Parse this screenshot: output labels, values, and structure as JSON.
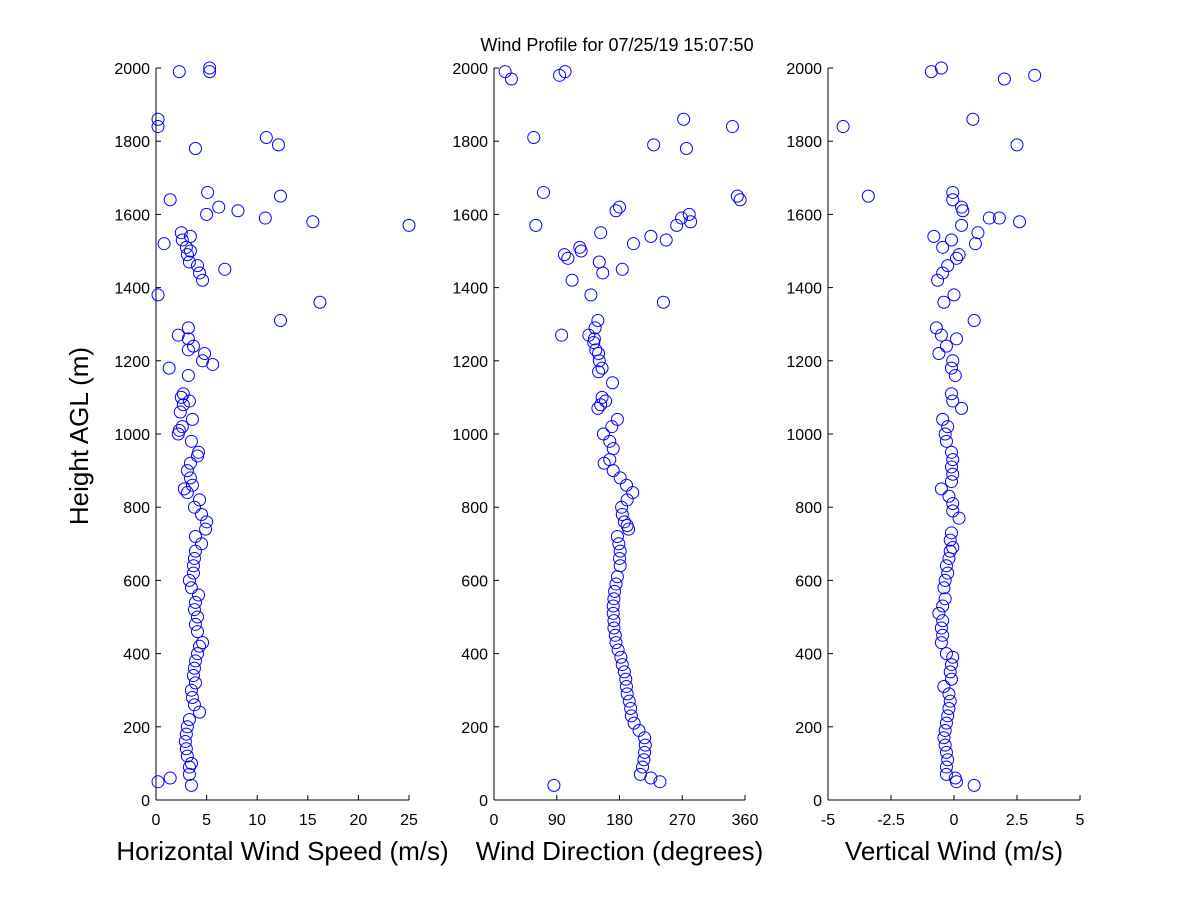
{
  "title": "Wind Profile for  07/25/19 15:07:50",
  "ylabel": "Height AGL (m)",
  "marker_color": "#0000ff",
  "chart_data": [
    {
      "type": "scatter",
      "xlabel": "Horizontal Wind Speed (m/s)",
      "xlim": [
        0,
        25
      ],
      "xticks": [
        0,
        5,
        10,
        15,
        20,
        25
      ],
      "xtick_labels": [
        "0",
        "5",
        "10",
        "15",
        "20",
        "25"
      ],
      "ylim": [
        0,
        2000
      ],
      "yticks": [
        0,
        200,
        400,
        600,
        800,
        1000,
        1200,
        1400,
        1600,
        1800,
        2000
      ],
      "ytick_labels": [
        "0",
        "200",
        "400",
        "600",
        "800",
        "1000",
        "1200",
        "1400",
        "1600",
        "1800",
        "2000"
      ],
      "points": [
        [
          0.2,
          50
        ],
        [
          1.4,
          60
        ],
        [
          3.5,
          40
        ],
        [
          3.3,
          70
        ],
        [
          3.3,
          90
        ],
        [
          3.5,
          100
        ],
        [
          3.1,
          120
        ],
        [
          3.0,
          140
        ],
        [
          2.9,
          160
        ],
        [
          3.0,
          180
        ],
        [
          3.1,
          200
        ],
        [
          3.3,
          220
        ],
        [
          4.3,
          240
        ],
        [
          3.8,
          260
        ],
        [
          3.6,
          280
        ],
        [
          3.5,
          300
        ],
        [
          3.9,
          320
        ],
        [
          3.7,
          340
        ],
        [
          3.8,
          360
        ],
        [
          3.9,
          380
        ],
        [
          4.1,
          400
        ],
        [
          4.3,
          420
        ],
        [
          4.6,
          430
        ],
        [
          4.1,
          460
        ],
        [
          3.9,
          480
        ],
        [
          4.1,
          500
        ],
        [
          3.8,
          520
        ],
        [
          3.9,
          540
        ],
        [
          4.2,
          560
        ],
        [
          3.5,
          580
        ],
        [
          3.3,
          600
        ],
        [
          3.7,
          620
        ],
        [
          3.7,
          640
        ],
        [
          3.8,
          660
        ],
        [
          3.9,
          680
        ],
        [
          4.5,
          700
        ],
        [
          3.9,
          720
        ],
        [
          4.9,
          740
        ],
        [
          5.0,
          760
        ],
        [
          4.5,
          780
        ],
        [
          3.8,
          800
        ],
        [
          4.3,
          820
        ],
        [
          3.1,
          840
        ],
        [
          2.8,
          850
        ],
        [
          3.6,
          860
        ],
        [
          3.4,
          880
        ],
        [
          3.1,
          900
        ],
        [
          3.4,
          920
        ],
        [
          4.1,
          940
        ],
        [
          4.2,
          950
        ],
        [
          3.5,
          980
        ],
        [
          2.2,
          1000
        ],
        [
          2.3,
          1010
        ],
        [
          2.6,
          1020
        ],
        [
          3.6,
          1040
        ],
        [
          2.4,
          1060
        ],
        [
          2.7,
          1080
        ],
        [
          3.3,
          1090
        ],
        [
          2.5,
          1100
        ],
        [
          2.7,
          1110
        ],
        [
          3.2,
          1160
        ],
        [
          1.3,
          1180
        ],
        [
          5.6,
          1190
        ],
        [
          4.6,
          1200
        ],
        [
          4.8,
          1220
        ],
        [
          3.2,
          1230
        ],
        [
          3.7,
          1240
        ],
        [
          3.2,
          1260
        ],
        [
          2.2,
          1270
        ],
        [
          3.2,
          1290
        ],
        [
          12.3,
          1310
        ],
        [
          16.2,
          1360
        ],
        [
          0.2,
          1380
        ],
        [
          4.6,
          1420
        ],
        [
          4.3,
          1440
        ],
        [
          6.8,
          1450
        ],
        [
          4.1,
          1460
        ],
        [
          3.3,
          1470
        ],
        [
          3.1,
          1490
        ],
        [
          3.4,
          1500
        ],
        [
          3.0,
          1510
        ],
        [
          0.8,
          1520
        ],
        [
          2.6,
          1530
        ],
        [
          3.4,
          1540
        ],
        [
          2.5,
          1550
        ],
        [
          25.0,
          1570
        ],
        [
          15.5,
          1580
        ],
        [
          10.8,
          1590
        ],
        [
          5.0,
          1600
        ],
        [
          8.1,
          1610
        ],
        [
          6.2,
          1620
        ],
        [
          1.4,
          1640
        ],
        [
          12.3,
          1650
        ],
        [
          5.1,
          1660
        ],
        [
          3.9,
          1780
        ],
        [
          12.1,
          1790
        ],
        [
          10.9,
          1810
        ],
        [
          0.2,
          1840
        ],
        [
          0.2,
          1860
        ],
        [
          5.3,
          1990
        ],
        [
          2.3,
          1990
        ],
        [
          5.3,
          2000
        ]
      ]
    },
    {
      "type": "scatter",
      "xlabel": "Wind Direction (degrees)",
      "xlim": [
        0,
        360
      ],
      "xticks": [
        0,
        90,
        180,
        270,
        360
      ],
      "xtick_labels": [
        "0",
        "90",
        "180",
        "270",
        "360"
      ],
      "ylim": [
        0,
        2000
      ],
      "yticks": [
        0,
        200,
        400,
        600,
        800,
        1000,
        1200,
        1400,
        1600,
        1800,
        2000
      ],
      "ytick_labels": [
        "0",
        "200",
        "400",
        "600",
        "800",
        "1000",
        "1200",
        "1400",
        "1600",
        "1800",
        "2000"
      ],
      "points": [
        [
          86,
          40
        ],
        [
          238,
          50
        ],
        [
          225,
          60
        ],
        [
          210,
          70
        ],
        [
          213,
          90
        ],
        [
          215,
          110
        ],
        [
          216,
          130
        ],
        [
          217,
          150
        ],
        [
          216,
          170
        ],
        [
          208,
          190
        ],
        [
          201,
          210
        ],
        [
          197,
          230
        ],
        [
          196,
          250
        ],
        [
          194,
          270
        ],
        [
          191,
          290
        ],
        [
          190,
          310
        ],
        [
          189,
          330
        ],
        [
          187,
          350
        ],
        [
          184,
          370
        ],
        [
          182,
          390
        ],
        [
          178,
          410
        ],
        [
          175,
          430
        ],
        [
          174,
          450
        ],
        [
          172,
          470
        ],
        [
          172,
          490
        ],
        [
          171,
          510
        ],
        [
          171,
          530
        ],
        [
          172,
          550
        ],
        [
          173,
          570
        ],
        [
          175,
          590
        ],
        [
          177,
          610
        ],
        [
          181,
          640
        ],
        [
          180,
          660
        ],
        [
          181,
          680
        ],
        [
          179,
          700
        ],
        [
          177,
          720
        ],
        [
          193,
          740
        ],
        [
          191,
          750
        ],
        [
          187,
          760
        ],
        [
          184,
          780
        ],
        [
          183,
          800
        ],
        [
          191,
          820
        ],
        [
          199,
          840
        ],
        [
          190,
          860
        ],
        [
          181,
          880
        ],
        [
          171,
          900
        ],
        [
          158,
          920
        ],
        [
          166,
          930
        ],
        [
          171,
          960
        ],
        [
          166,
          980
        ],
        [
          157,
          1000
        ],
        [
          169,
          1020
        ],
        [
          177,
          1040
        ],
        [
          149,
          1070
        ],
        [
          153,
          1080
        ],
        [
          160,
          1090
        ],
        [
          155,
          1100
        ],
        [
          170,
          1140
        ],
        [
          150,
          1170
        ],
        [
          155,
          1180
        ],
        [
          151,
          1200
        ],
        [
          150,
          1220
        ],
        [
          146,
          1230
        ],
        [
          143,
          1250
        ],
        [
          144,
          1260
        ],
        [
          136,
          1270
        ],
        [
          97,
          1270
        ],
        [
          145,
          1290
        ],
        [
          149,
          1310
        ],
        [
          243,
          1360
        ],
        [
          139,
          1380
        ],
        [
          112,
          1420
        ],
        [
          156,
          1440
        ],
        [
          184,
          1450
        ],
        [
          151,
          1470
        ],
        [
          106,
          1480
        ],
        [
          101,
          1490
        ],
        [
          125,
          1500
        ],
        [
          123,
          1510
        ],
        [
          200,
          1520
        ],
        [
          225,
          1540
        ],
        [
          247,
          1530
        ],
        [
          153,
          1550
        ],
        [
          60,
          1570
        ],
        [
          282,
          1580
        ],
        [
          269,
          1590
        ],
        [
          175,
          1610
        ],
        [
          180,
          1620
        ],
        [
          353,
          1640
        ],
        [
          349,
          1650
        ],
        [
          71,
          1660
        ],
        [
          276,
          1780
        ],
        [
          229,
          1790
        ],
        [
          57,
          1810
        ],
        [
          342,
          1840
        ],
        [
          272,
          1860
        ],
        [
          16,
          1990
        ],
        [
          94,
          1980
        ],
        [
          102,
          1990
        ],
        [
          25,
          1970
        ],
        [
          262,
          1570
        ],
        [
          280,
          1600
        ]
      ]
    },
    {
      "type": "scatter",
      "xlabel": "Vertical Wind (m/s)",
      "xlim": [
        -5,
        5
      ],
      "xticks": [
        -5,
        -2.5,
        0,
        2.5,
        5
      ],
      "xtick_labels": [
        "-5",
        "-2.5",
        "0",
        "2.5",
        "5"
      ],
      "ylim": [
        0,
        2000
      ],
      "yticks": [
        0,
        200,
        400,
        600,
        800,
        1000,
        1200,
        1400,
        1600,
        1800,
        2000
      ],
      "ytick_labels": [
        "0",
        "200",
        "400",
        "600",
        "800",
        "1000",
        "1200",
        "1400",
        "1600",
        "1800",
        "2000"
      ],
      "points": [
        [
          0.8,
          40
        ],
        [
          0.1,
          50
        ],
        [
          0.05,
          60
        ],
        [
          -0.3,
          70
        ],
        [
          -0.3,
          90
        ],
        [
          -0.25,
          110
        ],
        [
          -0.3,
          130
        ],
        [
          -0.35,
          150
        ],
        [
          -0.4,
          170
        ],
        [
          -0.35,
          190
        ],
        [
          -0.3,
          210
        ],
        [
          -0.25,
          230
        ],
        [
          -0.2,
          250
        ],
        [
          -0.15,
          270
        ],
        [
          -0.2,
          290
        ],
        [
          -0.4,
          310
        ],
        [
          -0.1,
          330
        ],
        [
          -0.15,
          350
        ],
        [
          -0.1,
          370
        ],
        [
          -0.05,
          390
        ],
        [
          -0.3,
          400
        ],
        [
          -0.5,
          430
        ],
        [
          -0.45,
          450
        ],
        [
          -0.5,
          470
        ],
        [
          -0.45,
          490
        ],
        [
          -0.6,
          510
        ],
        [
          -0.45,
          530
        ],
        [
          -0.35,
          550
        ],
        [
          -0.4,
          580
        ],
        [
          -0.35,
          600
        ],
        [
          -0.25,
          620
        ],
        [
          -0.3,
          640
        ],
        [
          -0.2,
          660
        ],
        [
          -0.15,
          680
        ],
        [
          -0.05,
          690
        ],
        [
          -0.15,
          710
        ],
        [
          -0.1,
          730
        ],
        [
          0.2,
          770
        ],
        [
          -0.05,
          790
        ],
        [
          -0.05,
          810
        ],
        [
          -0.2,
          830
        ],
        [
          -0.5,
          850
        ],
        [
          -0.1,
          870
        ],
        [
          -0.05,
          890
        ],
        [
          -0.1,
          910
        ],
        [
          -0.05,
          930
        ],
        [
          -0.1,
          950
        ],
        [
          -0.3,
          980
        ],
        [
          -0.35,
          1000
        ],
        [
          -0.25,
          1020
        ],
        [
          -0.45,
          1040
        ],
        [
          0.3,
          1070
        ],
        [
          -0.05,
          1090
        ],
        [
          -0.1,
          1110
        ],
        [
          0.05,
          1160
        ],
        [
          -0.1,
          1180
        ],
        [
          -0.05,
          1200
        ],
        [
          -0.6,
          1220
        ],
        [
          -0.3,
          1240
        ],
        [
          0.1,
          1260
        ],
        [
          -0.5,
          1270
        ],
        [
          -0.7,
          1290
        ],
        [
          0.8,
          1310
        ],
        [
          -0.4,
          1360
        ],
        [
          0.0,
          1380
        ],
        [
          -0.65,
          1420
        ],
        [
          -0.45,
          1440
        ],
        [
          -0.25,
          1460
        ],
        [
          0.1,
          1480
        ],
        [
          0.2,
          1490
        ],
        [
          -0.45,
          1510
        ],
        [
          0.85,
          1520
        ],
        [
          -0.8,
          1540
        ],
        [
          -0.1,
          1530
        ],
        [
          0.95,
          1550
        ],
        [
          0.3,
          1570
        ],
        [
          2.6,
          1580
        ],
        [
          1.4,
          1590
        ],
        [
          1.8,
          1590
        ],
        [
          0.35,
          1610
        ],
        [
          0.3,
          1620
        ],
        [
          -3.4,
          1650
        ],
        [
          -0.05,
          1640
        ],
        [
          -0.05,
          1660
        ],
        [
          2.5,
          1790
        ],
        [
          0.75,
          1860
        ],
        [
          -4.4,
          1840
        ],
        [
          -0.9,
          1990
        ],
        [
          -0.5,
          2000
        ],
        [
          2.0,
          1970
        ],
        [
          3.2,
          1980
        ]
      ]
    }
  ]
}
